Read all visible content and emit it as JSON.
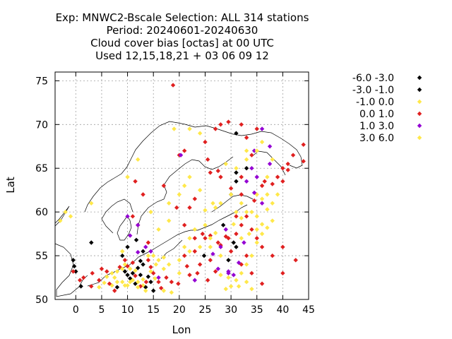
{
  "chart_data": {
    "type": "scatter",
    "title_lines": [
      "Exp: MNWC2-Bscale   Selection: ALL    314 stations",
      "Period: 20240601-20240630",
      "Cloud cover bias [octas] at  00 UTC",
      "Used 12,15,18,21 + 03 06 09 12"
    ],
    "xlabel": "Lon",
    "ylabel": "Lat",
    "xlim": [
      -4,
      45
    ],
    "ylim": [
      50,
      76
    ],
    "xticks": [
      0,
      5,
      10,
      15,
      20,
      25,
      30,
      35,
      40,
      45
    ],
    "yticks": [
      50,
      55,
      60,
      65,
      70,
      75
    ],
    "grid": true,
    "legend_position": "top-right outside",
    "series": [
      {
        "name": "-6.0 -3.0",
        "color": "#000000",
        "points": [
          [
            30,
            62
          ],
          [
            31,
            69
          ],
          [
            31,
            64.5
          ]
        ]
      },
      {
        "name": "-3.0 -1.0",
        "color": "#000000",
        "points": [
          [
            -0.5,
            54.5
          ],
          [
            -0.3,
            53.8
          ],
          [
            0,
            53.2
          ],
          [
            1,
            51.5
          ],
          [
            3,
            56.5
          ],
          [
            8,
            51.4
          ],
          [
            9.5,
            53.2
          ],
          [
            10,
            52.8
          ],
          [
            10.5,
            52.4
          ],
          [
            11,
            53
          ],
          [
            11.5,
            51.8
          ],
          [
            12,
            53.6
          ],
          [
            12.5,
            52.8
          ],
          [
            13,
            54
          ],
          [
            13.5,
            51.4
          ],
          [
            14,
            52.6
          ],
          [
            9,
            55
          ],
          [
            10,
            56
          ],
          [
            11.7,
            56.8
          ],
          [
            13,
            55.5
          ],
          [
            12.5,
            54.4
          ],
          [
            14.5,
            52
          ],
          [
            15,
            51
          ],
          [
            24.8,
            55
          ],
          [
            28.5,
            58.5
          ],
          [
            30.5,
            56.5
          ],
          [
            31,
            56
          ],
          [
            29.5,
            54.5
          ],
          [
            31,
            63.5
          ],
          [
            33,
            65
          ]
        ]
      },
      {
        "name": "-1.0 0.0",
        "color": "#ffe84a",
        "points": [
          [
            -3,
            59
          ],
          [
            -2,
            60
          ],
          [
            -1,
            59.5
          ],
          [
            3,
            61
          ],
          [
            9,
            55.5
          ],
          [
            9.5,
            54
          ],
          [
            10.5,
            53.5
          ],
          [
            11,
            52.2
          ],
          [
            12,
            52
          ],
          [
            13,
            51.6
          ],
          [
            14.5,
            53.2
          ],
          [
            15,
            55
          ],
          [
            16,
            54.5
          ],
          [
            17,
            53.5
          ],
          [
            18,
            54
          ],
          [
            20,
            54.5
          ],
          [
            22,
            57
          ],
          [
            23,
            58
          ],
          [
            25,
            58.5
          ],
          [
            26,
            56
          ],
          [
            28,
            55
          ],
          [
            29.5,
            52.5
          ],
          [
            30,
            51.5
          ],
          [
            31,
            52.2
          ],
          [
            32,
            53
          ],
          [
            33,
            54
          ],
          [
            34,
            55
          ],
          [
            35,
            56.5
          ],
          [
            36,
            57.5
          ],
          [
            37,
            58.2
          ],
          [
            33,
            60
          ],
          [
            31,
            60
          ],
          [
            35,
            62
          ],
          [
            37,
            64
          ],
          [
            38,
            66
          ],
          [
            36,
            68
          ],
          [
            33,
            67
          ],
          [
            19,
            69.5
          ],
          [
            22,
            69.5
          ],
          [
            24,
            69
          ],
          [
            10,
            64
          ],
          [
            12,
            66
          ],
          [
            14.5,
            60
          ],
          [
            16,
            58
          ],
          [
            18,
            59
          ],
          [
            26.5,
            61
          ],
          [
            30,
            62
          ],
          [
            32,
            61
          ],
          [
            34,
            60
          ],
          [
            36,
            61.5
          ],
          [
            38,
            59
          ],
          [
            29,
            65.5
          ],
          [
            32,
            57
          ],
          [
            35,
            58
          ],
          [
            8,
            53.2
          ],
          [
            7,
            51.6
          ],
          [
            6,
            52.6
          ],
          [
            5.5,
            51.9
          ],
          [
            4.5,
            51.4
          ],
          [
            9,
            52
          ],
          [
            10,
            51.6
          ],
          [
            15.3,
            52.4
          ],
          [
            17,
            51
          ],
          [
            18.5,
            50.8
          ],
          [
            25,
            60.2
          ],
          [
            27,
            60.5
          ],
          [
            28,
            61
          ],
          [
            24,
            62.5
          ],
          [
            22,
            64
          ],
          [
            21,
            63
          ],
          [
            20,
            62
          ],
          [
            18,
            61
          ]
        ]
      },
      {
        "name": "0.0 1.0",
        "color": "#e02020",
        "points": [
          [
            -0.5,
            53.2
          ],
          [
            0.8,
            52.2
          ],
          [
            1.5,
            52.5
          ],
          [
            3,
            51.5
          ],
          [
            3.2,
            53
          ],
          [
            4.5,
            52.2
          ],
          [
            5,
            53.5
          ],
          [
            6,
            53.2
          ],
          [
            6.5,
            51.8
          ],
          [
            7.5,
            51
          ],
          [
            8.5,
            53.7
          ],
          [
            9.5,
            54.5
          ],
          [
            10,
            53.8
          ],
          [
            11,
            54.2
          ],
          [
            11.5,
            52.7
          ],
          [
            12.5,
            51.5
          ],
          [
            13.6,
            52
          ],
          [
            14,
            54.5
          ],
          [
            14.5,
            53.7
          ],
          [
            15,
            53
          ],
          [
            16,
            52
          ],
          [
            16.5,
            51.3
          ],
          [
            17.5,
            52.5
          ],
          [
            18.5,
            52
          ],
          [
            19.8,
            51.8
          ],
          [
            18.8,
            74.5
          ],
          [
            21,
            55
          ],
          [
            21.5,
            53.8
          ],
          [
            22,
            52.8
          ],
          [
            23,
            55.5
          ],
          [
            24,
            54
          ],
          [
            25.5,
            52.2
          ],
          [
            26,
            54.5
          ],
          [
            27,
            53.2
          ],
          [
            28,
            56.2
          ],
          [
            29,
            57.2
          ],
          [
            30,
            55.5
          ],
          [
            31,
            57.5
          ],
          [
            32,
            58.5
          ],
          [
            33,
            59.5
          ],
          [
            34,
            58
          ],
          [
            35,
            57
          ],
          [
            33,
            55
          ],
          [
            32,
            54
          ],
          [
            36,
            56
          ],
          [
            34,
            53
          ],
          [
            36,
            51.8
          ],
          [
            38,
            55
          ],
          [
            40,
            53
          ],
          [
            42.5,
            54.5
          ],
          [
            40,
            56
          ],
          [
            36,
            63
          ],
          [
            39,
            64
          ],
          [
            40,
            65
          ],
          [
            41,
            65.5
          ],
          [
            42,
            66.5
          ],
          [
            44,
            67.7
          ],
          [
            44,
            65.8
          ],
          [
            34,
            66.5
          ],
          [
            33,
            68.5
          ],
          [
            35,
            69.5
          ],
          [
            32,
            70
          ],
          [
            28,
            64
          ],
          [
            30,
            62.7
          ],
          [
            32,
            64
          ],
          [
            26,
            64.5
          ],
          [
            25.5,
            66
          ],
          [
            27.5,
            64.7
          ],
          [
            23,
            61.5
          ],
          [
            22,
            60.5
          ],
          [
            21,
            58.5
          ],
          [
            23,
            57
          ],
          [
            24.5,
            57.5
          ],
          [
            26,
            57.3
          ],
          [
            27.5,
            56.5
          ],
          [
            29.5,
            57
          ],
          [
            31,
            59.5
          ],
          [
            32,
            62
          ],
          [
            34.5,
            61.3
          ],
          [
            36.5,
            63.5
          ],
          [
            38,
            63.2
          ],
          [
            40,
            63.5
          ],
          [
            41,
            64.8
          ],
          [
            14,
            56.5
          ],
          [
            11,
            59.5
          ],
          [
            12,
            58.5
          ],
          [
            17,
            63
          ],
          [
            20,
            66.5
          ],
          [
            21,
            67
          ],
          [
            25,
            68
          ],
          [
            27,
            69.5
          ],
          [
            28,
            70
          ],
          [
            29.5,
            70.3
          ],
          [
            23.5,
            53
          ],
          [
            25,
            57
          ],
          [
            19.5,
            60.5
          ],
          [
            13,
            62
          ],
          [
            11.5,
            63.5
          ]
        ]
      },
      {
        "name": "1.0 3.0",
        "color": "#9400d3",
        "points": [
          [
            10,
            59.5
          ],
          [
            12,
            58.5
          ],
          [
            10.5,
            57.3
          ],
          [
            13.5,
            56
          ],
          [
            12,
            55.4
          ],
          [
            14.5,
            55.5
          ],
          [
            16,
            52.5
          ],
          [
            29,
            58
          ],
          [
            28,
            56
          ],
          [
            26.5,
            55.2
          ],
          [
            27.5,
            53.5
          ],
          [
            29.5,
            53.2
          ],
          [
            30.5,
            52.8
          ],
          [
            31.5,
            54.2
          ],
          [
            32.5,
            56.5
          ],
          [
            36,
            61
          ],
          [
            33,
            63.5
          ],
          [
            34,
            65
          ],
          [
            34.5,
            67
          ],
          [
            36,
            69.5
          ],
          [
            37.5,
            67.5
          ],
          [
            35,
            64
          ],
          [
            37.5,
            65.5
          ],
          [
            29.5,
            53
          ],
          [
            23,
            52.2
          ],
          [
            20.3,
            66.5
          ],
          [
            34.5,
            62.2
          ]
        ]
      },
      {
        "name": "3.0 6.0",
        "color": "#ffe84a",
        "points": [
          [
            7,
            53
          ],
          [
            7.5,
            52.5
          ],
          [
            8,
            52
          ],
          [
            9,
            53.5
          ],
          [
            9.5,
            51.6
          ],
          [
            10.5,
            52
          ],
          [
            11.5,
            53.3
          ],
          [
            12,
            51.4
          ],
          [
            13,
            52.3
          ],
          [
            13.5,
            51
          ],
          [
            14,
            55
          ],
          [
            15.5,
            54
          ],
          [
            17,
            54.8
          ],
          [
            20,
            53
          ],
          [
            21,
            56
          ],
          [
            22,
            55.5
          ],
          [
            24,
            56
          ],
          [
            26,
            57
          ],
          [
            27,
            57.6
          ],
          [
            30.5,
            58.6
          ],
          [
            32,
            59.3
          ],
          [
            33.5,
            57.5
          ],
          [
            35,
            59.5
          ],
          [
            36,
            58.6
          ],
          [
            37,
            60.3
          ],
          [
            38,
            61
          ],
          [
            39,
            62
          ],
          [
            31,
            65
          ],
          [
            33,
            66
          ],
          [
            35,
            67
          ],
          [
            37,
            62
          ],
          [
            28,
            52.8
          ],
          [
            29,
            51.2
          ],
          [
            31.5,
            51.5
          ],
          [
            33,
            52
          ],
          [
            34,
            51.2
          ]
        ]
      }
    ]
  }
}
